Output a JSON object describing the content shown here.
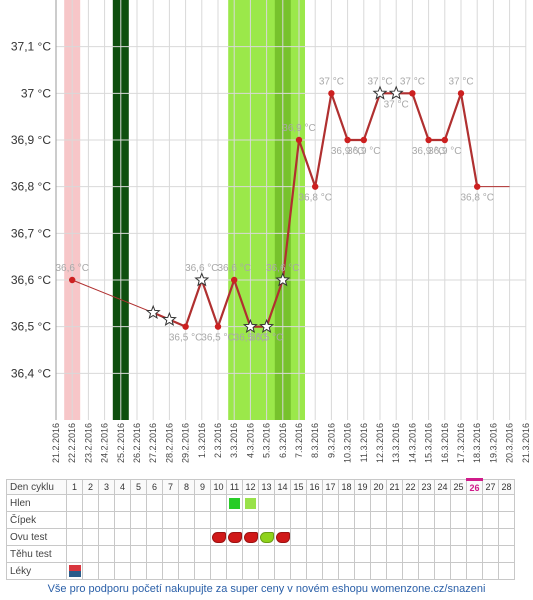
{
  "colors": {
    "line": "#b03030",
    "point": "#cc2020",
    "temp_label": "#a8a8a8",
    "y_label": "#333333",
    "grid": "#d9d9d9",
    "menstruation": "#f7c6c8",
    "dark_band": "#0e4f0e",
    "fertile_light": "#9be84a",
    "fertile_dark": "#77c22c",
    "hlen_a": "#27cc27",
    "hlen_b": "#99e24a",
    "ovu_red": "#d01818",
    "ovu_green": "#8fd31c",
    "footer": "#2a5fa8"
  },
  "chart_data": {
    "type": "line",
    "x_dates": [
      "21.2.2016",
      "22.2.2016",
      "23.2.2016",
      "24.2.2016",
      "25.2.2016",
      "26.2.2016",
      "27.2.2016",
      "28.2.2016",
      "29.2.2016",
      "1.3.2016",
      "2.3.2016",
      "3.3.2016",
      "4.3.2016",
      "5.3.2016",
      "6.3.2016",
      "7.3.2016",
      "8.3.2016",
      "9.3.2016",
      "10.3.2016",
      "11.3.2016",
      "12.3.2016",
      "13.3.2016",
      "14.3.2016",
      "15.3.2016",
      "16.3.2016",
      "17.3.2016",
      "18.3.2016",
      "19.3.2016",
      "20.3.2016",
      "21.3.2016"
    ],
    "y_ticks": [
      "36,4 °C",
      "36,5 °C",
      "36,6 °C",
      "36,7 °C",
      "36,8 °C",
      "36,9 °C",
      "37 °C",
      "37,1 °C"
    ],
    "ylim": [
      36.3,
      37.2
    ],
    "grid": true,
    "points": [
      {
        "date": "22.2.2016",
        "y": 36.6,
        "label": "36,6 °C",
        "marker": "dot"
      },
      {
        "date": "27.2.2016",
        "y": 36.53,
        "label": "",
        "marker": "star"
      },
      {
        "date": "28.2.2016",
        "y": 36.515,
        "label": "",
        "marker": "star"
      },
      {
        "date": "29.2.2016",
        "y": 36.5,
        "label": "36,5 °C",
        "marker": "dot"
      },
      {
        "date": "1.3.2016",
        "y": 36.6,
        "label": "36,6 °C",
        "marker": "star"
      },
      {
        "date": "2.3.2016",
        "y": 36.5,
        "label": "36,5 °C",
        "marker": "dot"
      },
      {
        "date": "3.3.2016",
        "y": 36.6,
        "label": "36,6 °C",
        "marker": "dot"
      },
      {
        "date": "4.3.2016",
        "y": 36.5,
        "label": "36,5 °C",
        "marker": "star"
      },
      {
        "date": "5.3.2016",
        "y": 36.5,
        "label": "36,5 °C",
        "marker": "star"
      },
      {
        "date": "6.3.2016",
        "y": 36.6,
        "label": "36,6 °C",
        "marker": "star"
      },
      {
        "date": "7.3.2016",
        "y": 36.9,
        "label": "36,9 °C",
        "marker": "dot"
      },
      {
        "date": "8.3.2016",
        "y": 36.8,
        "label": "36,8 °C",
        "marker": "dot"
      },
      {
        "date": "9.3.2016",
        "y": 37.0,
        "label": "37 °C",
        "marker": "dot"
      },
      {
        "date": "10.3.2016",
        "y": 36.9,
        "label": "36,9 °C",
        "marker": "dot"
      },
      {
        "date": "11.3.2016",
        "y": 36.9,
        "label": "36,9 °C",
        "marker": "dot"
      },
      {
        "date": "12.3.2016",
        "y": 37.0,
        "label": "37 °C",
        "marker": "star"
      },
      {
        "date": "13.3.2016",
        "y": 37.0,
        "label": "37 °C",
        "marker": "star"
      },
      {
        "date": "14.3.2016",
        "y": 37.0,
        "label": "37 °C",
        "marker": "dot"
      },
      {
        "date": "15.3.2016",
        "y": 36.9,
        "label": "36,9 °C",
        "marker": "dot"
      },
      {
        "date": "16.3.2016",
        "y": 36.9,
        "label": "36,9 °C",
        "marker": "dot"
      },
      {
        "date": "17.3.2016",
        "y": 37.0,
        "label": "37 °C",
        "marker": "dot"
      },
      {
        "date": "18.3.2016",
        "y": 36.8,
        "label": "36,8 °C",
        "marker": "dot"
      }
    ],
    "thin_segment": {
      "from": "22.2.2016",
      "to": "27.2.2016"
    },
    "tail_segment": {
      "from": "18.3.2016",
      "to": "20.3.2016",
      "y": 36.8
    },
    "bands": [
      {
        "kind": "menstruation",
        "from": "22.2.2016",
        "to": "22.2.2016"
      },
      {
        "kind": "dark",
        "from": "25.2.2016",
        "to": "25.2.2016"
      },
      {
        "kind": "fertile_light",
        "from": "3.3.2016",
        "to": "7.3.2016"
      },
      {
        "kind": "fertile_dark",
        "from": "6.3.2016",
        "to": "6.3.2016"
      }
    ]
  },
  "table": {
    "header_label": "Den cyklu",
    "days": [
      "1",
      "2",
      "3",
      "4",
      "5",
      "6",
      "7",
      "8",
      "9",
      "10",
      "11",
      "12",
      "13",
      "14",
      "15",
      "16",
      "17",
      "18",
      "19",
      "20",
      "21",
      "22",
      "23",
      "24",
      "25",
      "26",
      "27",
      "28"
    ],
    "today_day": "26",
    "rows": [
      {
        "label": "Hlen",
        "cells": {
          "11": "hlen_a",
          "12": "hlen_b"
        }
      },
      {
        "label": "Čípek",
        "cells": {}
      },
      {
        "label": "Ovu test",
        "cells": {
          "10": "ovu_red",
          "11": "ovu_red",
          "12": "ovu_red",
          "13": "ovu_green",
          "14": "ovu_red"
        }
      },
      {
        "label": "Těhu test",
        "cells": {}
      },
      {
        "label": "Léky",
        "cells": {
          "1": "leky"
        }
      }
    ]
  },
  "footer": {
    "text": "Vše pro podporu početí nakupujte za super ceny v novém eshopu womenzone.cz/snazeni"
  }
}
